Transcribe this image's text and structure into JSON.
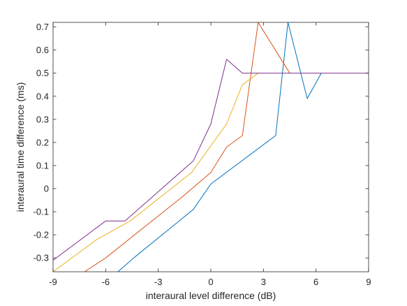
{
  "chart_data": {
    "type": "line",
    "title": "",
    "xlabel": "interaural level difference (dB)",
    "ylabel": "interaural time difference (ms)",
    "xlim": [
      -9,
      9
    ],
    "ylim": [
      -0.36,
      0.72
    ],
    "xticks": [
      -9,
      -6,
      -3,
      0,
      3,
      6,
      9
    ],
    "xtick_labels": [
      "-9",
      "-6",
      "-3",
      "0",
      "3",
      "6",
      "9"
    ],
    "yticks": [
      -0.3,
      -0.2,
      -0.1,
      0,
      0.1,
      0.2,
      0.3,
      0.4,
      0.5,
      0.6,
      0.7
    ],
    "ytick_labels": [
      "-0.3",
      "-0.2",
      "-0.1",
      "0",
      "0.1",
      "0.2",
      "0.3",
      "0.4",
      "0.5",
      "0.6",
      "0.7"
    ],
    "grid": false,
    "legend": "none",
    "series": [
      {
        "color": "#0072BD",
        "x": [
          -5.3,
          -4.4,
          -1.0,
          0.0,
          3.7,
          4.4,
          5.5,
          6.3
        ],
        "y": [
          -0.36,
          -0.3,
          -0.09,
          0.02,
          0.23,
          0.72,
          0.39,
          0.5
        ]
      },
      {
        "color": "#D95319",
        "x": [
          -7.2,
          -6.0,
          -1.7,
          0.0,
          0.9,
          1.8,
          2.7,
          4.5
        ],
        "y": [
          -0.36,
          -0.3,
          -0.04,
          0.07,
          0.18,
          0.23,
          0.72,
          0.5
        ]
      },
      {
        "color": "#EDB120",
        "x": [
          -9.0,
          -6.5,
          -4.6,
          -1.1,
          0.9,
          1.8,
          2.7
        ],
        "y": [
          -0.36,
          -0.22,
          -0.14,
          0.07,
          0.28,
          0.45,
          0.5
        ]
      },
      {
        "color": "#7E2F8E",
        "x": [
          -9.0,
          -6.0,
          -4.9,
          -1.0,
          0.0,
          0.9,
          1.8,
          9.0
        ],
        "y": [
          -0.31,
          -0.14,
          -0.14,
          0.12,
          0.28,
          0.56,
          0.5,
          0.5
        ]
      }
    ]
  }
}
